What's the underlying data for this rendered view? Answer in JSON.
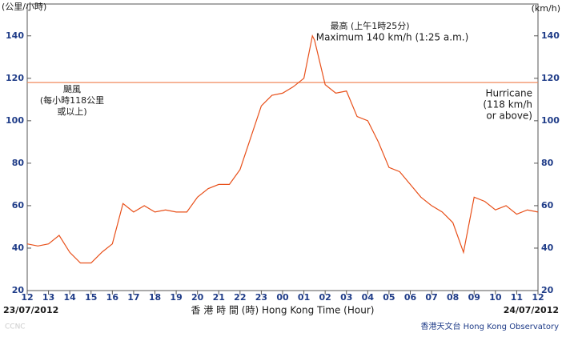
{
  "chart_data": {
    "type": "line",
    "y_unit_left": "(公里/小時)",
    "y_unit_right": "(km/h)",
    "x_label": "香 港 時 間 (時)  Hong Kong Time (Hour)",
    "start_date": "23/07/2012",
    "end_date": "24/07/2012",
    "source": "香港天文台 Hong Kong Observatory",
    "watermark": "CCNC",
    "max_annotation": [
      "最高 (上午1時25分)",
      "Maximum 140 km/h (1:25 a.m.)"
    ],
    "threshold": {
      "value": 118,
      "color": "#f08a5d",
      "label_zh": [
        "颶風",
        "(每小時118公里",
        "或以上)"
      ],
      "label_en": [
        "Hurricane",
        "(118 km/h",
        "or above)"
      ]
    },
    "x": [
      0,
      0.5,
      1,
      1.5,
      2,
      2.5,
      3,
      3.5,
      4,
      4.5,
      5,
      5.5,
      6,
      6.5,
      7,
      7.5,
      8,
      8.5,
      9,
      9.5,
      10,
      10.5,
      11,
      11.5,
      12,
      12.5,
      13,
      13.4,
      13.5,
      14,
      14.5,
      15,
      15.5,
      16,
      16.5,
      17,
      17.5,
      18,
      18.5,
      19,
      19.5,
      20,
      20.5,
      21,
      21.5,
      22,
      22.5,
      23,
      23.5,
      24
    ],
    "series": [
      {
        "color": "#e8501a",
        "values": [
          42,
          41,
          42,
          46,
          38,
          33,
          33,
          38,
          42,
          61,
          57,
          60,
          57,
          58,
          57,
          57,
          64,
          68,
          70,
          70,
          77,
          92,
          107,
          112,
          113,
          116,
          120,
          140,
          138,
          117,
          113,
          114,
          102,
          100,
          90,
          78,
          76,
          70,
          64,
          60,
          57,
          52,
          38,
          64,
          62,
          58,
          60,
          56,
          58,
          57
        ]
      }
    ],
    "xlim": [
      0,
      24
    ],
    "xticks": [
      {
        "value": 0,
        "label": "12"
      },
      {
        "value": 1,
        "label": "13"
      },
      {
        "value": 2,
        "label": "14"
      },
      {
        "value": 3,
        "label": "15"
      },
      {
        "value": 4,
        "label": "16"
      },
      {
        "value": 5,
        "label": "17"
      },
      {
        "value": 6,
        "label": "18"
      },
      {
        "value": 7,
        "label": "19"
      },
      {
        "value": 8,
        "label": "20"
      },
      {
        "value": 9,
        "label": "21"
      },
      {
        "value": 10,
        "label": "22"
      },
      {
        "value": 11,
        "label": "23"
      },
      {
        "value": 12,
        "label": "00"
      },
      {
        "value": 13,
        "label": "01"
      },
      {
        "value": 14,
        "label": "02"
      },
      {
        "value": 15,
        "label": "03"
      },
      {
        "value": 16,
        "label": "04"
      },
      {
        "value": 17,
        "label": "05"
      },
      {
        "value": 18,
        "label": "06"
      },
      {
        "value": 19,
        "label": "07"
      },
      {
        "value": 20,
        "label": "08"
      },
      {
        "value": 21,
        "label": "09"
      },
      {
        "value": 22,
        "label": "10"
      },
      {
        "value": 23,
        "label": "11"
      },
      {
        "value": 24,
        "label": "12"
      }
    ],
    "ylim": [
      20,
      155
    ],
    "yticks": [
      20,
      40,
      60,
      80,
      100,
      120,
      140
    ],
    "y2lim": [
      20,
      155
    ],
    "y2ticks": [
      20,
      40,
      60,
      80,
      100,
      120,
      140
    ]
  }
}
